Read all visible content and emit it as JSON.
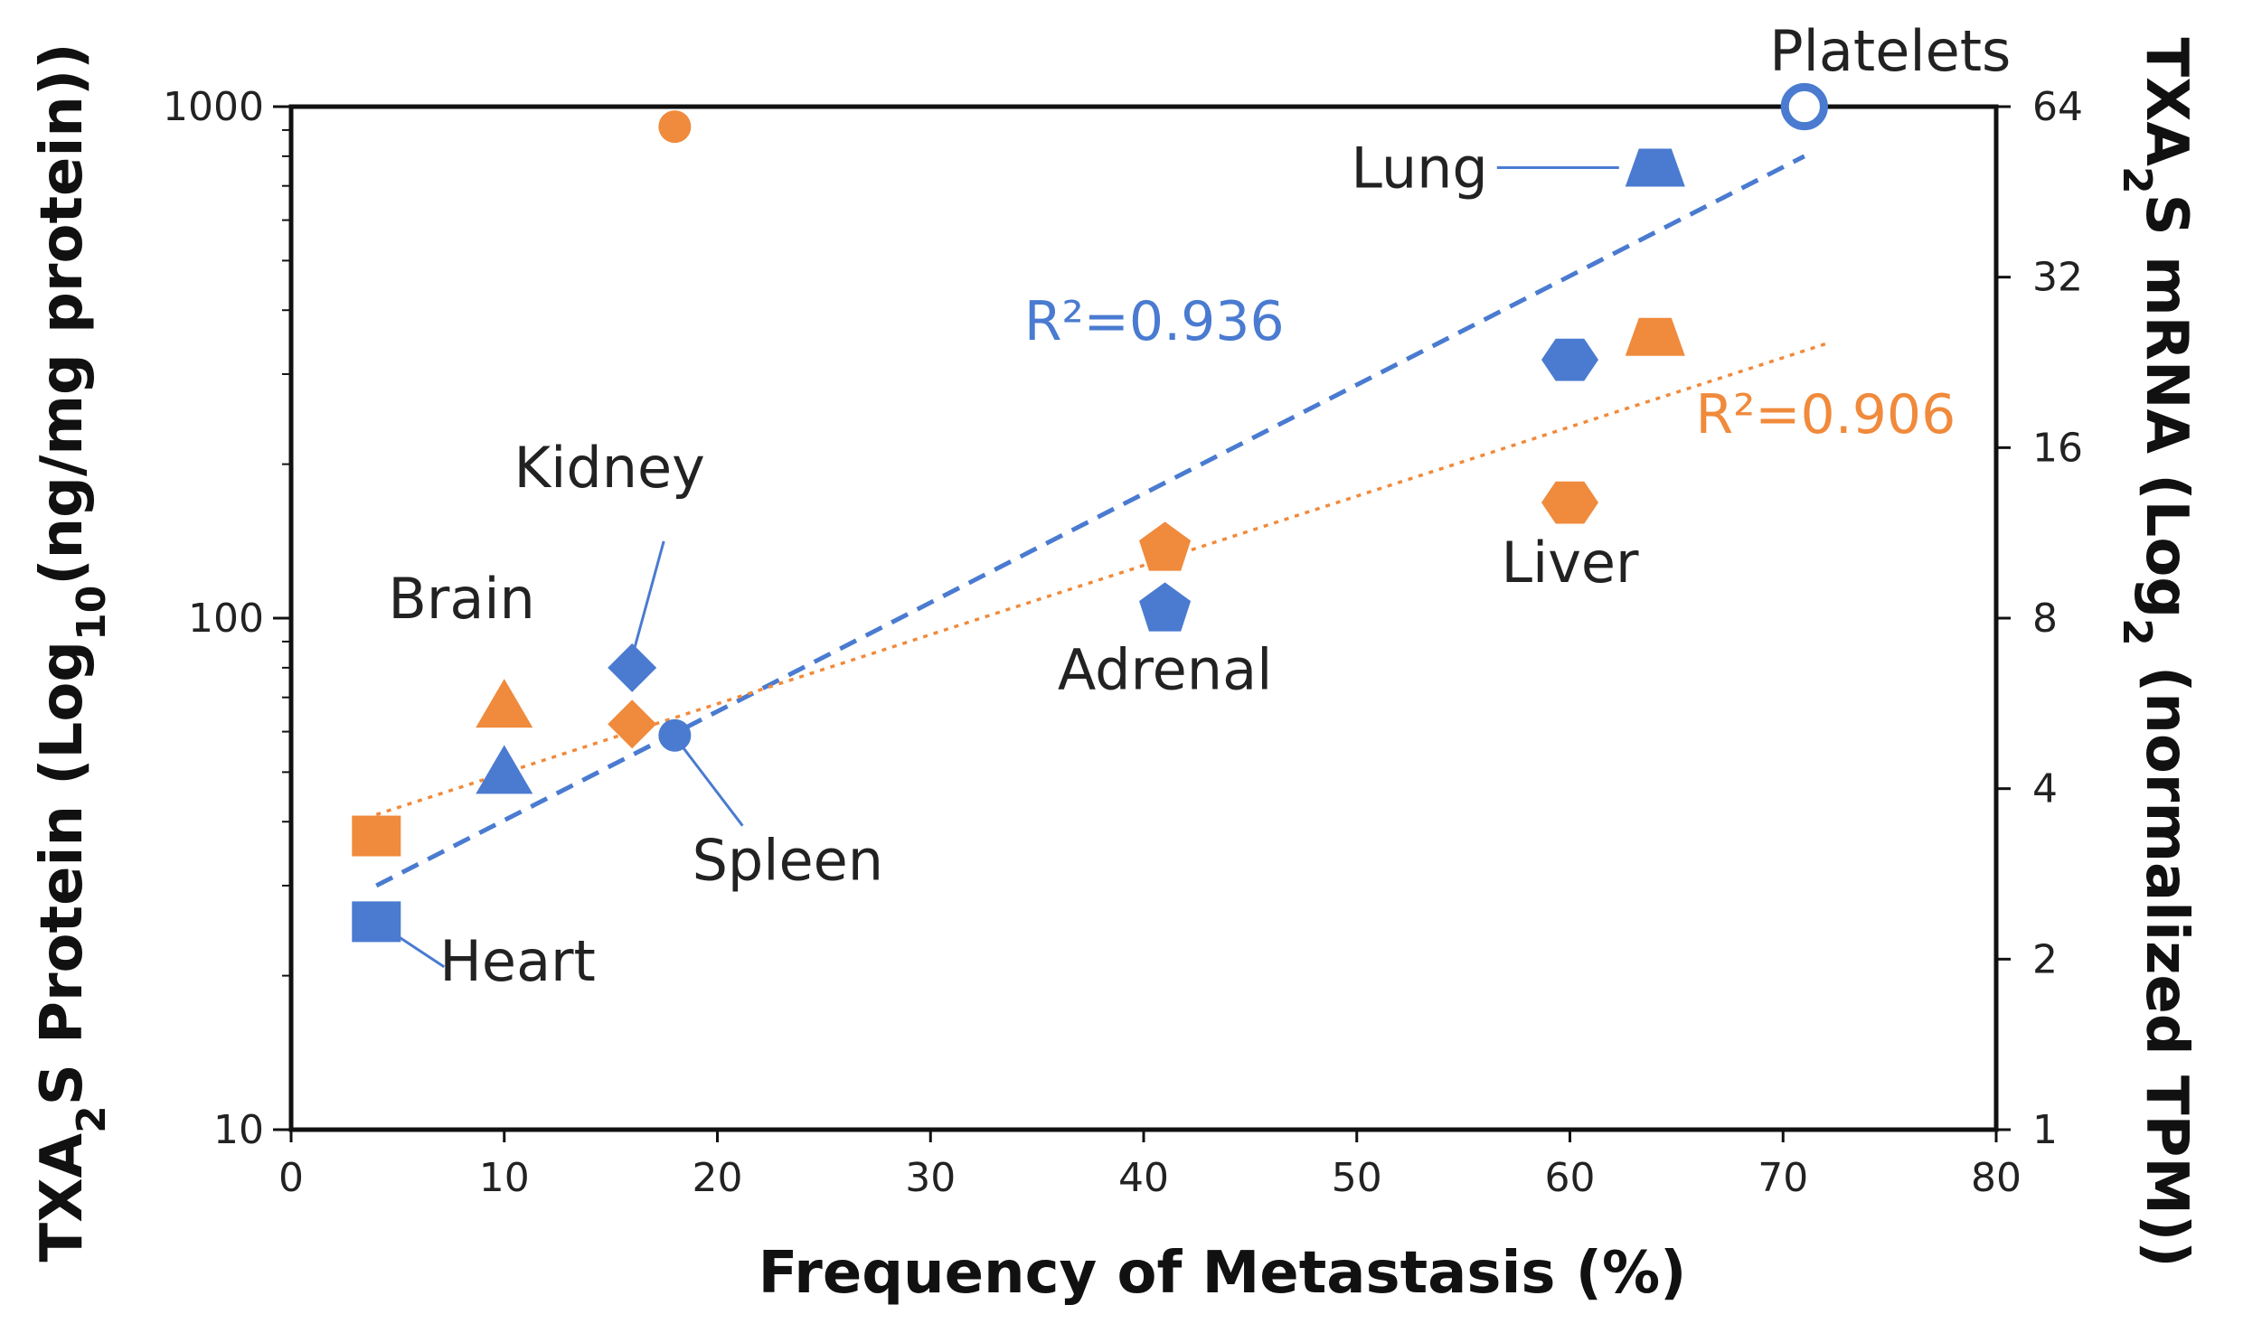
{
  "chart_data": {
    "type": "scatter",
    "xlabel": "Frequency of Metastasis (%)",
    "ylabel_left": {
      "prefix": "TXA",
      "sub1": "2",
      "middle": "S Protein (Log",
      "sub2": "10",
      "suffix": "(ng/mg protein))"
    },
    "ylabel_right": {
      "prefix": "TXA",
      "sub1": "2",
      "middle": "S mRNA (Log",
      "sub2": "2",
      "suffix": " (normalized TPM))"
    },
    "x_range": [
      0,
      80
    ],
    "x_ticks": [
      0,
      10,
      20,
      30,
      40,
      50,
      60,
      70,
      80
    ],
    "x_tick_labels": [
      "0",
      "10",
      "20",
      "30",
      "40",
      "50",
      "60",
      "70",
      "80"
    ],
    "y_left_scale": "log10",
    "y_left_range": [
      10,
      1000
    ],
    "y_left_ticks": [
      10,
      100,
      1000
    ],
    "y_left_tick_labels": [
      "10",
      "100",
      "1000"
    ],
    "y_right_scale": "log2",
    "y_right_range": [
      1,
      64
    ],
    "y_right_ticks": [
      1,
      2,
      4,
      8,
      16,
      32,
      64
    ],
    "y_right_tick_labels": [
      "1",
      "2",
      "4",
      "8",
      "16",
      "32",
      "64"
    ],
    "series": [
      {
        "name": "Protein",
        "color": "#4a7bd0",
        "axis": "left",
        "points": [
          {
            "label": "Heart",
            "x": 4,
            "y": 25.5,
            "marker": "square"
          },
          {
            "label": "Brain",
            "x": 10,
            "y": 50,
            "marker": "triangle"
          },
          {
            "label": "Kidney",
            "x": 16,
            "y": 80,
            "marker": "diamond"
          },
          {
            "label": "Spleen",
            "x": 18,
            "y": 59,
            "marker": "circle"
          },
          {
            "label": "Adrenal",
            "x": 41,
            "y": 104,
            "marker": "pentagon"
          },
          {
            "label": "Liver",
            "x": 60,
            "y": 320,
            "marker": "hexagon"
          },
          {
            "label": "Lung",
            "x": 64,
            "y": 760,
            "marker": "trapezoid"
          },
          {
            "label": "Platelets",
            "x": 71,
            "y": 1000,
            "marker": "ring"
          }
        ],
        "trendline": {
          "x": [
            4,
            71
          ],
          "y": [
            30,
            800
          ],
          "style": "dashed"
        },
        "r2_label": "R²=0.936"
      },
      {
        "name": "mRNA",
        "color": "#f08a3c",
        "axis": "right",
        "points": [
          {
            "label": "Heart",
            "x": 4,
            "y": 3.3,
            "marker": "square"
          },
          {
            "label": "Brain",
            "x": 10,
            "y": 5.6,
            "marker": "triangle"
          },
          {
            "label": "Kidney",
            "x": 16,
            "y": 5.2,
            "marker": "diamond"
          },
          {
            "label": "Spleen",
            "x": 18,
            "y": 59,
            "marker": "circle"
          },
          {
            "label": "Adrenal",
            "x": 41,
            "y": 10.6,
            "marker": "pentagon"
          },
          {
            "label": "Liver",
            "x": 60,
            "y": 12.8,
            "marker": "hexagon"
          },
          {
            "label": "Lung",
            "x": 64,
            "y": 25.1,
            "marker": "trapezoid"
          }
        ],
        "trendline": {
          "x": [
            4,
            72
          ],
          "y": [
            3.6,
            24.4
          ],
          "style": "dotted"
        },
        "r2_label": "R²=0.906"
      }
    ],
    "annotations": [
      "Platelets",
      "Lung",
      "Kidney",
      "Brain",
      "Adrenal",
      "Liver",
      "Spleen",
      "Heart"
    ]
  }
}
